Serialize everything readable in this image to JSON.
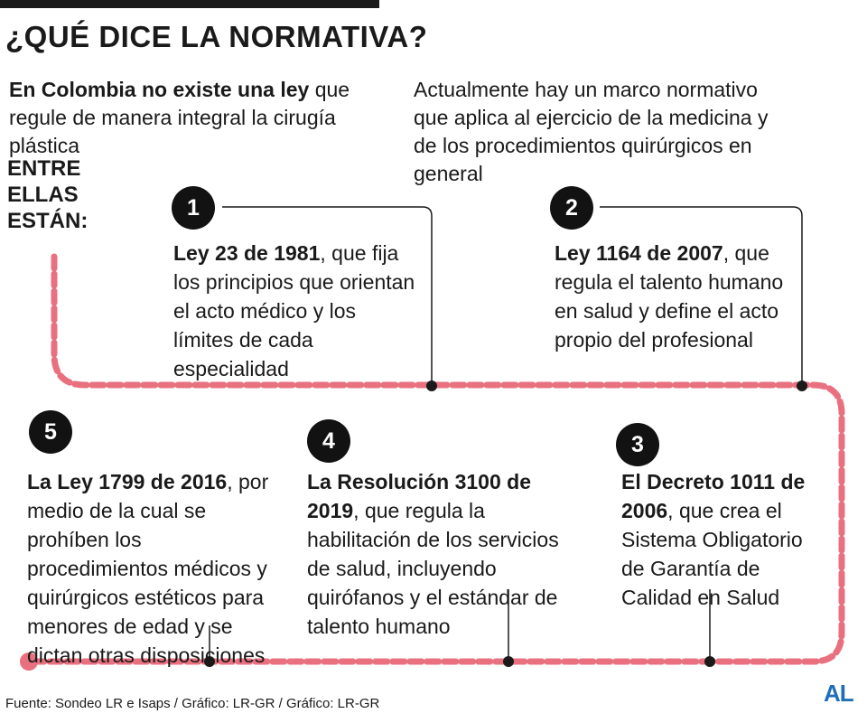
{
  "title": "¿QUÉ DICE LA NORMATIVA?",
  "intro": {
    "left_bold": "En Colombia no existe una ley",
    "left_rest": " que regule de manera integral la cirugía plástica",
    "right": "Actualmente hay un marco normativo que aplica al ejercicio de la medicina y de los procedimientos quirúrgicos en general"
  },
  "entre_label": [
    "ENTRE",
    "ELLAS",
    "ESTÁN:"
  ],
  "items": [
    {
      "number": "1",
      "bold": "Ley 23 de 1981",
      "text": ", que fija los principios que orientan el acto médico y los límites de cada especialidad"
    },
    {
      "number": "2",
      "bold": "Ley 1164 de 2007",
      "text": ", que regula el talento humano en salud y define el acto propio del profesional"
    },
    {
      "number": "3",
      "bold": "El Decreto 1011 de 2006",
      "text": ", que crea el Sistema Obligatorio de Garantía de Calidad en Salud"
    },
    {
      "number": "4",
      "bold": "La Resolución 3100 de 2019",
      "text": ", que regula la habilitación de los servicios de salud, incluyendo quirófanos y el estándar de talento humano"
    },
    {
      "number": "5",
      "bold": "La Ley 1799 de 2016",
      "text": ", por medio de la cual se prohíben los procedimientos médicos y quirúrgicos estéticos para menores de edad y se dictan otras disposiciones"
    }
  ],
  "footer": "Fuente: Sondeo LR e Isaps / Gráfico: LR-GR / Gráfico: LR-GR",
  "logo": "AL",
  "colors": {
    "track": "#e8707f",
    "badge": "#121212",
    "logo": "#1f6fb8",
    "text": "#1a1a1a"
  }
}
